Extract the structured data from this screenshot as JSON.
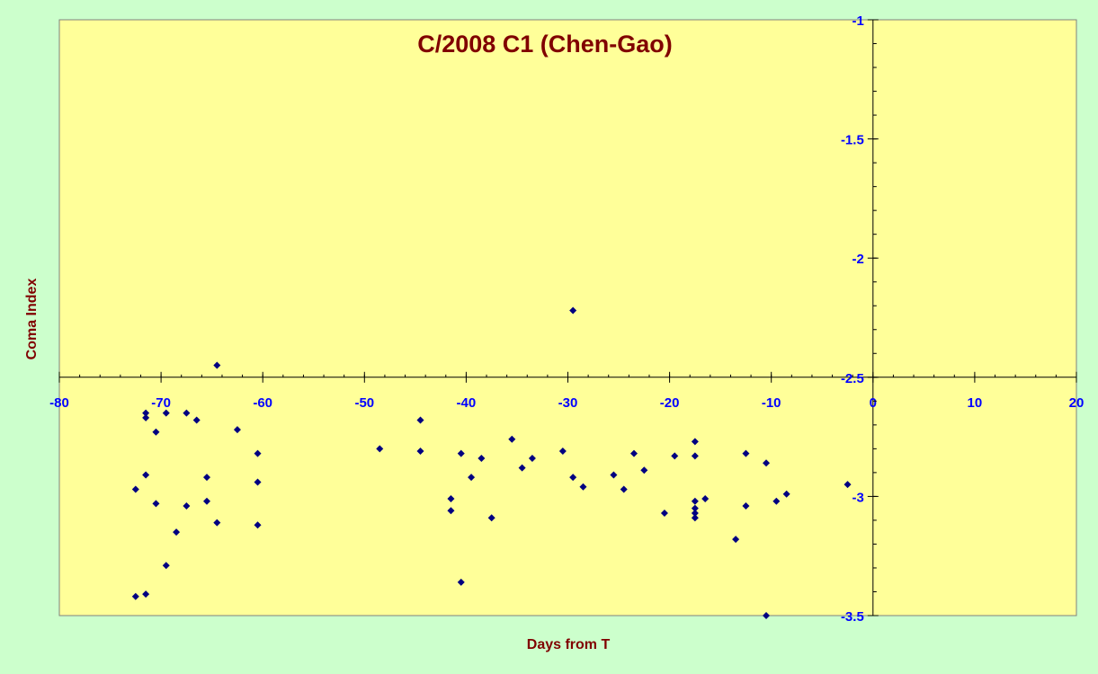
{
  "chart_data": {
    "type": "scatter",
    "title": "C/2008 C1 (Chen-Gao)",
    "xlabel": "Days from T",
    "ylabel": "Coma Index",
    "xlim": [
      -80,
      20
    ],
    "ylim": [
      -3.5,
      -1
    ],
    "y_axis_reversed": true,
    "x_axis_crosses_y_at": -2.5,
    "y_axis_crosses_x_at": 0,
    "x_major_unit": 10,
    "y_major_unit": 0.5,
    "x_ticks": [
      "-80",
      "-70",
      "-60",
      "-50",
      "-40",
      "-30",
      "-20",
      "-10",
      "0",
      "10",
      "20"
    ],
    "y_ticks": [
      "-1",
      "-1.5",
      "-2",
      "-2.5",
      "-3",
      "-3.5"
    ],
    "grid": false,
    "legend": "none",
    "colors": {
      "page_background": "#ccffcc",
      "plot_background": "#ffff99",
      "marker": "#000080",
      "title": "#800000",
      "tick_labels": "#0000ff"
    },
    "series": [
      {
        "marker": "diamond",
        "points": [
          [
            -72.5,
            -3.42
          ],
          [
            -72.5,
            -2.97
          ],
          [
            -71.5,
            -3.41
          ],
          [
            -71.5,
            -2.91
          ],
          [
            -71.5,
            -2.65
          ],
          [
            -71.5,
            -2.67
          ],
          [
            -70.5,
            -2.73
          ],
          [
            -70.5,
            -3.03
          ],
          [
            -69.5,
            -3.29
          ],
          [
            -69.5,
            -2.65
          ],
          [
            -68.5,
            -3.15
          ],
          [
            -67.5,
            -2.65
          ],
          [
            -67.5,
            -3.04
          ],
          [
            -66.5,
            -2.68
          ],
          [
            -65.5,
            -3.02
          ],
          [
            -65.5,
            -2.92
          ],
          [
            -64.5,
            -3.11
          ],
          [
            -64.5,
            -2.45
          ],
          [
            -62.5,
            -2.72
          ],
          [
            -60.5,
            -2.82
          ],
          [
            -60.5,
            -2.94
          ],
          [
            -60.5,
            -3.12
          ],
          [
            -48.5,
            -2.8
          ],
          [
            -44.5,
            -2.81
          ],
          [
            -44.5,
            -2.68
          ],
          [
            -41.5,
            -3.01
          ],
          [
            -41.5,
            -3.06
          ],
          [
            -40.5,
            -2.82
          ],
          [
            -40.5,
            -3.36
          ],
          [
            -39.5,
            -2.92
          ],
          [
            -38.5,
            -2.84
          ],
          [
            -37.5,
            -3.09
          ],
          [
            -35.5,
            -2.76
          ],
          [
            -34.5,
            -2.88
          ],
          [
            -33.5,
            -2.84
          ],
          [
            -30.5,
            -2.81
          ],
          [
            -29.5,
            -2.22
          ],
          [
            -29.5,
            -2.92
          ],
          [
            -28.5,
            -2.96
          ],
          [
            -25.5,
            -2.91
          ],
          [
            -24.5,
            -2.97
          ],
          [
            -23.5,
            -2.82
          ],
          [
            -22.5,
            -2.89
          ],
          [
            -20.5,
            -3.07
          ],
          [
            -19.5,
            -2.83
          ],
          [
            -17.5,
            -2.77
          ],
          [
            -17.5,
            -2.83
          ],
          [
            -17.5,
            -3.02
          ],
          [
            -17.5,
            -3.05
          ],
          [
            -17.5,
            -3.07
          ],
          [
            -17.5,
            -3.09
          ],
          [
            -16.5,
            -3.01
          ],
          [
            -13.5,
            -3.18
          ],
          [
            -12.5,
            -2.82
          ],
          [
            -12.5,
            -3.04
          ],
          [
            -10.5,
            -2.86
          ],
          [
            -10.5,
            -3.5
          ],
          [
            -9.5,
            -3.02
          ],
          [
            -8.5,
            -2.99
          ],
          [
            -2.5,
            -2.95
          ]
        ]
      }
    ]
  }
}
